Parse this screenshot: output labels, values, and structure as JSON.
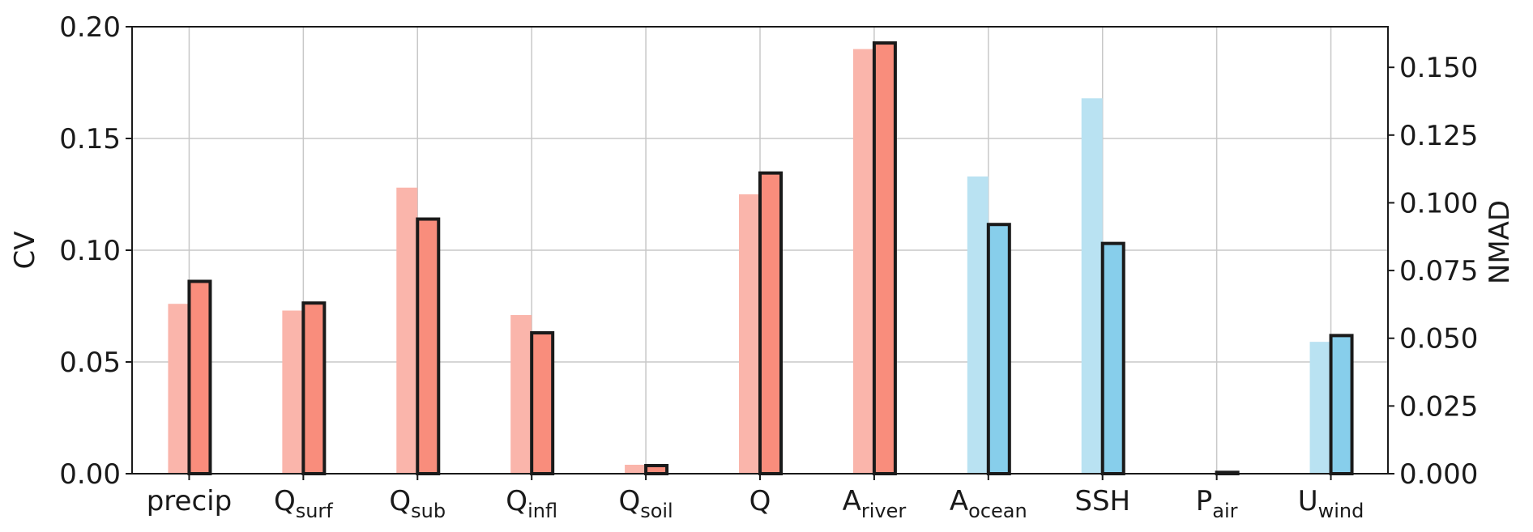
{
  "chart_data": {
    "type": "bar",
    "categories": [
      {
        "main": "precip",
        "sub": ""
      },
      {
        "main": "Q",
        "sub": "surf"
      },
      {
        "main": "Q",
        "sub": "sub"
      },
      {
        "main": "Q",
        "sub": "infl"
      },
      {
        "main": "Q",
        "sub": "soil"
      },
      {
        "main": "Q",
        "sub": ""
      },
      {
        "main": "A",
        "sub": "river"
      },
      {
        "main": "A",
        "sub": "ocean"
      },
      {
        "main": "SSH",
        "sub": ""
      },
      {
        "main": "P",
        "sub": "air"
      },
      {
        "main": "U",
        "sub": "wind"
      }
    ],
    "series": [
      {
        "axis": "left",
        "values": [
          0.076,
          0.073,
          0.128,
          0.071,
          0.004,
          0.125,
          0.19,
          0.133,
          0.168,
          0.0,
          0.059
        ]
      },
      {
        "axis": "right",
        "values": [
          0.071,
          0.063,
          0.094,
          0.052,
          0.003,
          0.111,
          0.159,
          0.092,
          0.085,
          0.0005,
          0.051
        ]
      }
    ],
    "bar_groups": [
      "land",
      "land",
      "land",
      "land",
      "land",
      "land",
      "land",
      "ocean",
      "ocean",
      "ocean",
      "ocean"
    ],
    "colors": {
      "land_light": "#fab5ab",
      "land_dark": "#f98d7c",
      "ocean_light": "#b9e2f2",
      "ocean_dark": "#87ceeb",
      "edge": "#1a1a1a",
      "grid": "#c8c8c8"
    },
    "ylabel": "CV",
    "ylabel_right": "NMAD",
    "ylim": [
      0,
      0.2
    ],
    "ylim_right": [
      0,
      0.165
    ],
    "yticks": [
      "0.00",
      "0.05",
      "0.10",
      "0.15",
      "0.20"
    ],
    "yticks_right": [
      "0.000",
      "0.025",
      "0.050",
      "0.075",
      "0.100",
      "0.125",
      "0.150"
    ],
    "grid": true
  }
}
